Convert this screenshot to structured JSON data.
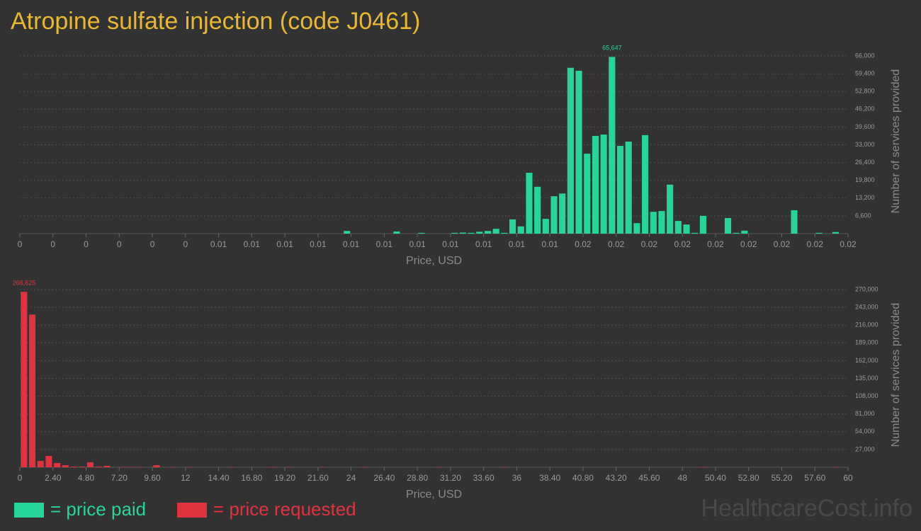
{
  "title": "Atropine sulfate injection (code J0461)",
  "watermark": "HealthcareCost.info",
  "chart_data": [
    {
      "type": "histogram",
      "x_label": "Price, USD",
      "y_label": "Number of services provided",
      "bins": [
        0,
        0.000225,
        0.00045,
        0.000675,
        0.0009,
        0.001125,
        0.00135,
        0.001575,
        0.0018,
        0.002025,
        0.00225,
        0.002475,
        0.0027,
        0.002925,
        0.00315,
        0.003375,
        0.0036,
        0.003825,
        0.00405,
        0.004275,
        0.0045,
        0.004725,
        0.00495,
        0.005175,
        0.0054,
        0.005625,
        0.00585,
        0.006075,
        0.0063,
        0.006525,
        0.00675,
        0.006975,
        0.0072,
        0.007425,
        0.00765,
        0.007875,
        0.0081,
        0.008325,
        0.00855,
        0.008775,
        0.009,
        0.009225,
        0.00945,
        0.009675,
        0.0099,
        0.010125,
        0.01035,
        0.010575,
        0.0108,
        0.011025,
        0.01125,
        0.011475,
        0.0117,
        0.011925,
        0.01215,
        0.012375,
        0.0126,
        0.012825,
        0.01305,
        0.013275,
        0.0135,
        0.013725,
        0.01395,
        0.014175,
        0.0144,
        0.014625,
        0.01485,
        0.015075,
        0.0153,
        0.015525,
        0.01575,
        0.015975,
        0.0162,
        0.016425,
        0.01665,
        0.016875,
        0.0171,
        0.017325,
        0.01755,
        0.017775,
        0.018,
        0.018225,
        0.01845,
        0.018675,
        0.0189,
        0.019125,
        0.01935,
        0.019575,
        0.0198,
        0.020025,
        0.02025,
        0.020475,
        0.0207,
        0.020925,
        0.02115,
        0.021375,
        0.0216,
        0.021825,
        0.02205,
        0.022275,
        0.0225
      ],
      "series": [
        {
          "name": "= price paid",
          "color": "#27d49a",
          "values": [
            0,
            0,
            0,
            0,
            0,
            0,
            0,
            0,
            0,
            0,
            0,
            0,
            0,
            0,
            0,
            0,
            0,
            0,
            0,
            0,
            0,
            0,
            0,
            0,
            0,
            0,
            0,
            0,
            0,
            0,
            0,
            0,
            0,
            0,
            0,
            0,
            0,
            0,
            0,
            1000,
            0,
            0,
            0,
            0,
            0,
            800,
            0,
            0,
            300,
            0,
            0,
            0,
            300,
            400,
            300,
            700,
            1000,
            1800,
            300,
            5300,
            2700,
            22600,
            17400,
            5500,
            13900,
            14900,
            61600,
            60500,
            29700,
            36300,
            36800,
            65647,
            32600,
            34200,
            3900,
            36600,
            8100,
            8400,
            18200,
            4700,
            3400,
            300,
            6600,
            0,
            0,
            5800,
            300,
            1100,
            0,
            0,
            0,
            0,
            0,
            8700,
            0,
            0,
            300,
            0,
            600,
            0
          ],
          "value_labels": [
            null,
            null,
            null,
            null,
            null,
            null,
            null,
            null,
            null,
            null,
            null,
            null,
            null,
            null,
            null,
            null,
            null,
            null,
            null,
            null,
            null,
            null,
            null,
            null,
            null,
            null,
            null,
            null,
            null,
            null,
            null,
            null,
            null,
            null,
            null,
            null,
            null,
            null,
            null,
            null,
            null,
            null,
            null,
            null,
            null,
            null,
            null,
            null,
            null,
            null,
            null,
            null,
            null,
            null,
            null,
            null,
            null,
            null,
            null,
            null,
            null,
            null,
            null,
            null,
            null,
            null,
            null,
            null,
            null,
            null,
            null,
            "65,647",
            null,
            null,
            null,
            null,
            null,
            null,
            null,
            null,
            null,
            null,
            null,
            null,
            null,
            null,
            null,
            null,
            null,
            null,
            null,
            null,
            null,
            null,
            null,
            null,
            null,
            null,
            null,
            null
          ]
        }
      ],
      "xlim": [
        0,
        0.0225
      ],
      "xticks": [
        0,
        {
          "value": 0.0009,
          "label": "0"
        },
        {
          "value": 0.0018,
          "label": "0"
        },
        {
          "value": 0.0027,
          "label": "0"
        },
        {
          "value": 0.0036,
          "label": "0"
        },
        {
          "value": 0.0045,
          "label": "0"
        },
        {
          "value": 0.0054,
          "label": "0.01"
        },
        {
          "value": 0.0063,
          "label": "0.01"
        },
        {
          "value": 0.0072,
          "label": "0.01"
        },
        {
          "value": 0.0081,
          "label": "0.01"
        },
        {
          "value": 0.009,
          "label": "0.01"
        },
        {
          "value": 0.0099,
          "label": "0.01"
        },
        {
          "value": 0.0108,
          "label": "0.01"
        },
        {
          "value": 0.0117,
          "label": "0.01"
        },
        {
          "value": 0.0126,
          "label": "0.01"
        },
        {
          "value": 0.0135,
          "label": "0.01"
        },
        {
          "value": 0.0144,
          "label": "0.01"
        },
        {
          "value": 0.0153,
          "label": "0.02"
        },
        {
          "value": 0.0162,
          "label": "0.02"
        },
        {
          "value": 0.0171,
          "label": "0.02"
        },
        {
          "value": 0.018,
          "label": "0.02"
        },
        {
          "value": 0.0189,
          "label": "0.02"
        },
        {
          "value": 0.0198,
          "label": "0.02"
        },
        {
          "value": 0.0207,
          "label": "0.02"
        },
        {
          "value": 0.0216,
          "label": "0.02"
        },
        {
          "value": 0.0225,
          "label": "0.02"
        }
      ],
      "ylim": [
        0,
        66000
      ],
      "yticks": [
        {
          "value": 6600,
          "label": "6,600"
        },
        {
          "value": 13200,
          "label": "13,200"
        },
        {
          "value": 19800,
          "label": "19,800"
        },
        {
          "value": 26400,
          "label": "26,400"
        },
        {
          "value": 33000,
          "label": "33,000"
        },
        {
          "value": 39600,
          "label": "39,600"
        },
        {
          "value": 46200,
          "label": "46,200"
        },
        {
          "value": 52800,
          "label": "52,800"
        },
        {
          "value": 59400,
          "label": "59,400"
        },
        {
          "value": 66000,
          "label": "66,000"
        }
      ],
      "grid": true
    },
    {
      "type": "histogram",
      "x_label": "Price, USD",
      "y_label": "Number of services provided",
      "bins": [
        0,
        0.6,
        1.2,
        1.8,
        2.4,
        3,
        3.6,
        4.2,
        4.8,
        5.4,
        6,
        6.6,
        7.2,
        7.8,
        8.4,
        9,
        9.6,
        10.2,
        10.8,
        11.4,
        12,
        12.6,
        13.2,
        13.8,
        14.4,
        15,
        15.6,
        16.2,
        16.8,
        17.4,
        18,
        18.6,
        19.2,
        19.8,
        20.4,
        21,
        21.6,
        22.2,
        22.8,
        23.4,
        24,
        24.6,
        25.2,
        25.8,
        26.4,
        27,
        27.6,
        28.2,
        28.8,
        29.4,
        30,
        30.6,
        31.2,
        31.8,
        32.4,
        33,
        33.6,
        34.2,
        34.8,
        35.4,
        36,
        36.6,
        37.2,
        37.8,
        38.4,
        39,
        39.6,
        40.2,
        40.8,
        41.4,
        42,
        42.6,
        43.2,
        43.8,
        44.4,
        45,
        45.6,
        46.2,
        46.8,
        47.4,
        48,
        48.6,
        49.2,
        49.8,
        50.4,
        51,
        51.6,
        52.2,
        52.8,
        53.4,
        54,
        54.6,
        55.2,
        55.8,
        56.4,
        57,
        57.6,
        58.2,
        58.8,
        59.4,
        60
      ],
      "series": [
        {
          "name": "= price requested",
          "color": "#e0323f",
          "values": [
            266625,
            232000,
            9700,
            17200,
            6500,
            3200,
            1000,
            1000,
            7500,
            1000,
            2200,
            0,
            500,
            500,
            500,
            0,
            3200,
            0,
            500,
            0,
            500,
            0,
            0,
            0,
            0,
            500,
            0,
            0,
            0,
            0,
            500,
            0,
            500,
            0,
            0,
            0,
            500,
            0,
            0,
            0,
            0,
            500,
            0,
            0,
            0,
            0,
            0,
            0,
            0,
            0,
            500,
            0,
            0,
            0,
            0,
            0,
            0,
            0,
            500,
            0,
            0,
            0,
            0,
            0,
            0,
            0,
            0,
            0,
            0,
            0,
            0,
            0,
            0,
            0,
            0,
            0,
            0,
            0,
            0,
            0,
            0,
            0,
            500,
            0,
            0,
            0,
            0,
            0,
            0,
            0,
            0,
            0,
            0,
            0,
            0,
            0,
            0,
            0,
            500,
            0
          ],
          "value_labels": [
            "266,625",
            null,
            null,
            null,
            null,
            null,
            null,
            null,
            null,
            null,
            null,
            null,
            null,
            null,
            null,
            null,
            null,
            null,
            null,
            null,
            null,
            null,
            null,
            null,
            null,
            null,
            null,
            null,
            null,
            null,
            null,
            null,
            null,
            null,
            null,
            null,
            null,
            null,
            null,
            null,
            null,
            null,
            null,
            null,
            null,
            null,
            null,
            null,
            null,
            null,
            null,
            null,
            null,
            null,
            null,
            null,
            null,
            null,
            null,
            null,
            null,
            null,
            null,
            null,
            null,
            null,
            null,
            null,
            null,
            null,
            null,
            null,
            null,
            null,
            null,
            null,
            null,
            null,
            null,
            null,
            null,
            null,
            null,
            null,
            null,
            null,
            null,
            null,
            null,
            null,
            null,
            null,
            null,
            null,
            null,
            null,
            null,
            null,
            null,
            null
          ]
        }
      ],
      "xlim": [
        0,
        60
      ],
      "xticks": [
        0,
        {
          "value": 2.4,
          "label": "2.40"
        },
        {
          "value": 4.8,
          "label": "4.80"
        },
        {
          "value": 7.2,
          "label": "7.20"
        },
        {
          "value": 9.6,
          "label": "9.60"
        },
        12,
        {
          "value": 14.4,
          "label": "14.40"
        },
        {
          "value": 16.8,
          "label": "16.80"
        },
        {
          "value": 19.2,
          "label": "19.20"
        },
        {
          "value": 21.6,
          "label": "21.60"
        },
        24,
        {
          "value": 26.4,
          "label": "26.40"
        },
        {
          "value": 28.8,
          "label": "28.80"
        },
        {
          "value": 31.2,
          "label": "31.20"
        },
        {
          "value": 33.6,
          "label": "33.60"
        },
        36,
        {
          "value": 38.4,
          "label": "38.40"
        },
        {
          "value": 40.8,
          "label": "40.80"
        },
        {
          "value": 43.2,
          "label": "43.20"
        },
        {
          "value": 45.6,
          "label": "45.60"
        },
        48,
        {
          "value": 50.4,
          "label": "50.40"
        },
        {
          "value": 52.8,
          "label": "52.80"
        },
        {
          "value": 55.2,
          "label": "55.20"
        },
        {
          "value": 57.6,
          "label": "57.60"
        },
        60
      ],
      "ylim": [
        0,
        270000
      ],
      "yticks": [
        {
          "value": 27000,
          "label": "27,000"
        },
        {
          "value": 54000,
          "label": "54,000"
        },
        {
          "value": 81000,
          "label": "81,000"
        },
        {
          "value": 108000,
          "label": "108,000"
        },
        {
          "value": 135000,
          "label": "135,000"
        },
        {
          "value": 162000,
          "label": "162,000"
        },
        {
          "value": 189000,
          "label": "189,000"
        },
        {
          "value": 216000,
          "label": "216,000"
        },
        {
          "value": 243000,
          "label": "243,000"
        },
        {
          "value": 270000,
          "label": "270,000"
        }
      ],
      "grid": true
    }
  ]
}
